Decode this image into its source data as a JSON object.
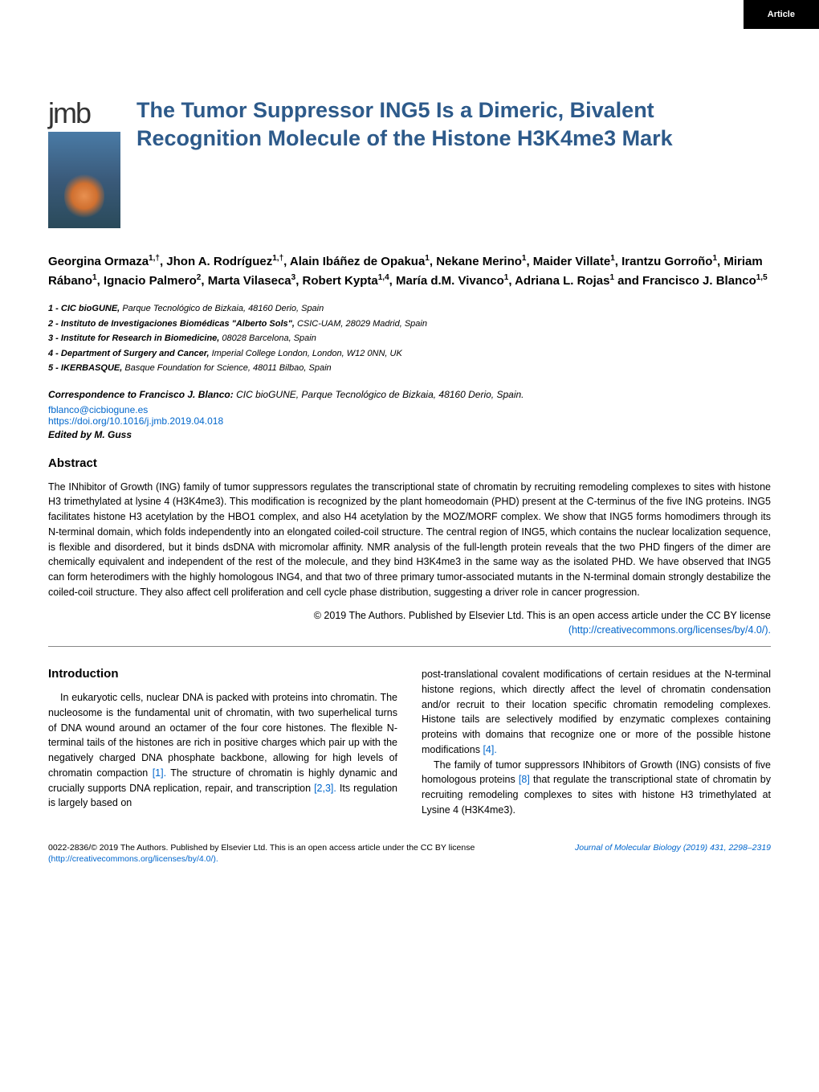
{
  "badge": "Article",
  "logo_text": "jmb",
  "title": "The Tumor Suppressor ING5 Is a Dimeric, Bivalent Recognition Molecule of the Histone H3K4me3 Mark",
  "authors_html": "Georgina Ormaza<sup>1,†</sup>, Jhon A. Rodríguez<sup>1,†</sup>, Alain Ibáñez de Opakua<sup>1</sup>, Nekane Merino<sup>1</sup>, Maider Villate<sup>1</sup>, Irantzu Gorroño<sup>1</sup>, Miriam Rábano<sup>1</sup>, Ignacio Palmero<sup>2</sup>, Marta Vilaseca<sup>3</sup>, Robert Kypta<sup>1,4</sup>, María d.M. Vivanco<sup>1</sup>, Adriana L. Rojas<sup>1</sup> and Francisco J. Blanco<sup>1,5</sup>",
  "affiliations": [
    {
      "num": "1",
      "name": "CIC bioGUNE,",
      "addr": "Parque Tecnológico de Bizkaia, 48160 Derio, Spain"
    },
    {
      "num": "2",
      "name": "Instituto de Investigaciones Biomédicas \"Alberto Sols\",",
      "addr": "CSIC-UAM, 28029 Madrid, Spain"
    },
    {
      "num": "3",
      "name": "Institute for Research in Biomedicine,",
      "addr": "08028 Barcelona, Spain"
    },
    {
      "num": "4",
      "name": "Department of Surgery and Cancer,",
      "addr": "Imperial College London, London, W12 0NN, UK"
    },
    {
      "num": "5",
      "name": "IKERBASQUE,",
      "addr": "Basque Foundation for Science, 48011 Bilbao, Spain"
    }
  ],
  "correspondence": {
    "label": "Correspondence to Francisco J. Blanco:",
    "text": "CIC bioGUNE, Parque Tecnológico de Bizkaia, 48160 Derio, Spain.",
    "email": "fblanco@cicbiogune.es",
    "doi": "https://doi.org/10.1016/j.jmb.2019.04.018"
  },
  "edited_by": "Edited by M. Guss",
  "abstract": {
    "heading": "Abstract",
    "body": "The INhibitor of Growth (ING) family of tumor suppressors regulates the transcriptional state of chromatin by recruiting remodeling complexes to sites with histone H3 trimethylated at lysine 4 (H3K4me3). This modification is recognized by the plant homeodomain (PHD) present at the C-terminus of the five ING proteins. ING5 facilitates histone H3 acetylation by the HBO1 complex, and also H4 acetylation by the MOZ/MORF complex. We show that ING5 forms homodimers through its N-terminal domain, which folds independently into an elongated coiled-coil structure. The central region of ING5, which contains the nuclear localization sequence, is flexible and disordered, but it binds dsDNA with micromolar affinity. NMR analysis of the full-length protein reveals that the two PHD fingers of the dimer are chemically equivalent and independent of the rest of the molecule, and they bind H3K4me3 in the same way as the isolated PHD. We have observed that ING5 can form heterodimers with the highly homologous ING4, and that two of three primary tumor-associated mutants in the N-terminal domain strongly destabilize the coiled-coil structure. They also affect cell proliferation and cell cycle phase distribution, suggesting a driver role in cancer progression.",
    "copyright": "© 2019 The Authors. Published by Elsevier Ltd. This is an open access article under the CC BY license",
    "license_url": "(http://creativecommons.org/licenses/by/4.0/)."
  },
  "introduction": {
    "heading": "Introduction",
    "col1_p1": "In eukaryotic cells, nuclear DNA is packed with proteins into chromatin. The nucleosome is the fundamental unit of chromatin, with two superhelical turns of DNA wound around an octamer of the four core histones. The flexible N-terminal tails of the histones are rich in positive charges which pair up with the negatively charged DNA phosphate backbone, allowing for high levels of chromatin compaction ",
    "col1_ref1": "[1].",
    "col1_p1b": " The structure of chromatin is highly dynamic and crucially supports DNA replication, repair, and transcription ",
    "col1_ref2": "[2,3].",
    "col1_p1c": " Its regulation is largely based on",
    "col2_p1": "post-translational covalent modifications of certain residues at the N-terminal histone regions, which directly affect the level of chromatin condensation and/or recruit to their location specific chromatin remodeling complexes. Histone tails are selectively modified by enzymatic complexes containing proteins with domains that recognize one or more of the possible histone modifications ",
    "col2_ref1": "[4].",
    "col2_p2a": "The family of tumor suppressors INhibitors of Growth (ING) consists of five homologous proteins ",
    "col2_ref2": "[8]",
    "col2_p2b": " that regulate the transcriptional state of chromatin by recruiting remodeling complexes to sites with histone H3 trimethylated at Lysine 4 (H3K4me3)."
  },
  "footer": {
    "left_line1": "0022-2836/© 2019 The Authors. Published by Elsevier Ltd. This is an open access article under the CC BY license",
    "left_line2_url": "(http://creativecommons.org/licenses/by/4.0/).",
    "right": "Journal of Molecular Biology (2019) 431, 2298–2319"
  }
}
